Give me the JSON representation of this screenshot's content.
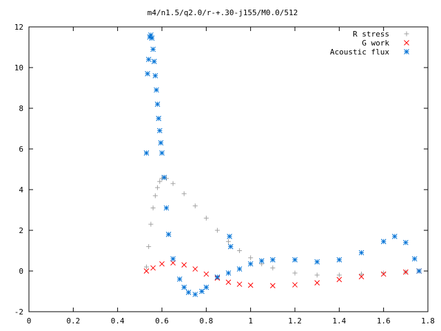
{
  "chart_data": {
    "type": "scatter",
    "title": "m4/n1.5/q2.0/r-+.30-j155/M0.0/512",
    "xlabel": "",
    "ylabel": "",
    "xlim": [
      0,
      1.8
    ],
    "ylim": [
      -2,
      12
    ],
    "x_ticks": [
      0,
      0.2,
      0.4,
      0.6,
      0.8,
      1,
      1.2,
      1.4,
      1.6,
      1.8
    ],
    "x_tick_labels": [
      "0",
      "0.2",
      "0.4",
      "0.6",
      "0.8",
      "1",
      "1.2",
      "1.4",
      "1.6",
      "1.8"
    ],
    "y_ticks": [
      -2,
      0,
      2,
      4,
      6,
      8,
      10,
      12
    ],
    "y_tick_labels": [
      "-2",
      "0",
      "2",
      "4",
      "6",
      "8",
      "10",
      "12"
    ],
    "grid": false,
    "legend_position": "top-right",
    "series": [
      {
        "name": "R stress",
        "marker": "plus",
        "color": "#a0a0a0",
        "x": [
          0.53,
          0.54,
          0.55,
          0.56,
          0.57,
          0.58,
          0.59,
          0.6,
          0.61,
          0.62,
          0.65,
          0.7,
          0.75,
          0.8,
          0.85,
          0.9,
          0.95,
          1.0,
          1.05,
          1.1,
          1.2,
          1.3,
          1.4,
          1.5,
          1.6,
          1.7,
          1.76
        ],
        "y": [
          0.2,
          1.2,
          2.3,
          3.1,
          3.7,
          4.1,
          4.4,
          4.55,
          4.6,
          4.55,
          4.3,
          3.8,
          3.2,
          2.6,
          2.0,
          1.45,
          1.0,
          0.65,
          0.35,
          0.15,
          -0.1,
          -0.2,
          -0.2,
          -0.15,
          -0.1,
          -0.05,
          0.0
        ]
      },
      {
        "name": "G work",
        "marker": "cross",
        "color": "#ff0000",
        "x": [
          0.53,
          0.56,
          0.6,
          0.65,
          0.7,
          0.75,
          0.8,
          0.85,
          0.9,
          0.95,
          1.0,
          1.1,
          1.2,
          1.3,
          1.4,
          1.5,
          1.6,
          1.7,
          1.76
        ],
        "y": [
          0.0,
          0.15,
          0.35,
          0.4,
          0.3,
          0.1,
          -0.15,
          -0.35,
          -0.55,
          -0.65,
          -0.7,
          -0.72,
          -0.68,
          -0.58,
          -0.42,
          -0.28,
          -0.15,
          -0.05,
          0.0
        ]
      },
      {
        "name": "Acoustic flux",
        "marker": "star",
        "color": "#0072d6",
        "x": [
          0.53,
          0.535,
          0.54,
          0.545,
          0.55,
          0.555,
          0.56,
          0.565,
          0.57,
          0.575,
          0.58,
          0.585,
          0.59,
          0.595,
          0.6,
          0.61,
          0.62,
          0.63,
          0.65,
          0.68,
          0.7,
          0.72,
          0.75,
          0.78,
          0.8,
          0.85,
          0.9,
          0.905,
          0.91,
          0.95,
          1.0,
          1.05,
          1.1,
          1.2,
          1.3,
          1.4,
          1.5,
          1.6,
          1.65,
          1.7,
          1.74,
          1.76
        ],
        "y": [
          5.8,
          9.7,
          10.4,
          11.5,
          11.6,
          11.45,
          10.9,
          10.3,
          9.6,
          8.9,
          8.2,
          7.5,
          6.9,
          6.3,
          5.8,
          4.6,
          3.1,
          1.8,
          0.6,
          -0.4,
          -0.8,
          -1.05,
          -1.15,
          -1.0,
          -0.8,
          -0.3,
          -0.1,
          1.7,
          1.2,
          0.1,
          0.35,
          0.5,
          0.55,
          0.55,
          0.45,
          0.55,
          0.9,
          1.45,
          1.7,
          1.4,
          0.6,
          0.0
        ]
      }
    ]
  }
}
